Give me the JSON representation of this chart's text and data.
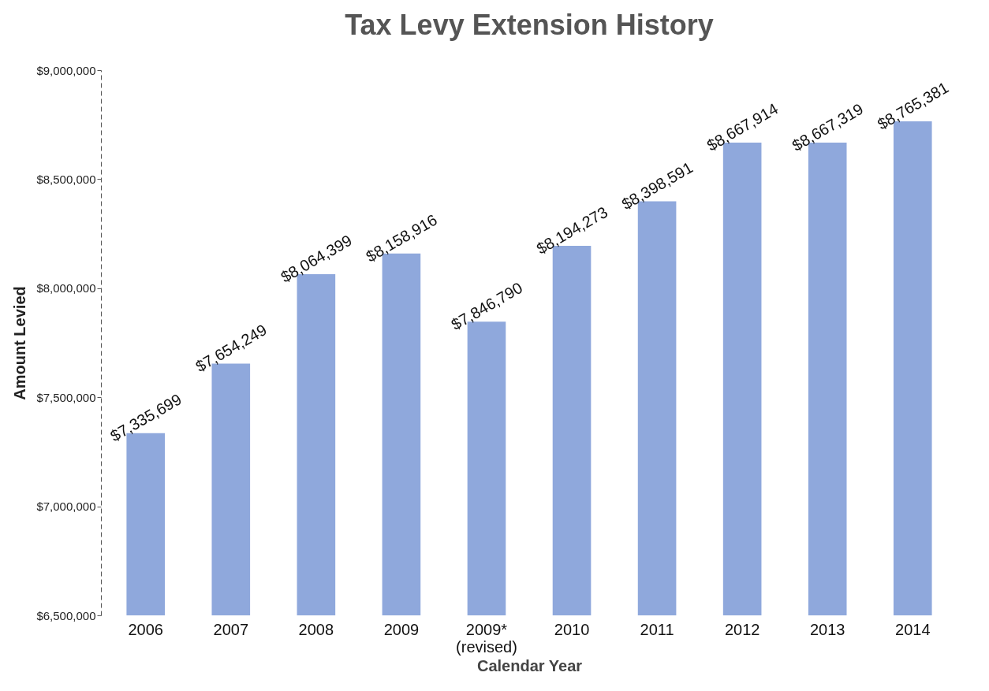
{
  "chart_data": {
    "type": "bar",
    "title": "Tax Levy Extension History",
    "xlabel": "Calendar Year",
    "ylabel": "Amount Levied",
    "categories": [
      "2006",
      "2007",
      "2008",
      "2009",
      "2009*\n(revised)",
      "2010",
      "2011",
      "2012",
      "2013",
      "2014"
    ],
    "values": [
      7335699,
      7654249,
      8064399,
      8158916,
      7846790,
      8194273,
      8398591,
      8667914,
      8667319,
      8765381
    ],
    "color": "#8fa8dc",
    "ylim": [
      6500000,
      9000000
    ],
    "yticks": [
      {
        "value": 6500000,
        "label": "$6,500,000"
      },
      {
        "value": 7000000,
        "label": "$7,000,000"
      },
      {
        "value": 7500000,
        "label": "$7,500,000"
      },
      {
        "value": 8000000,
        "label": "$8,000,000"
      },
      {
        "value": 8500000,
        "label": "$8,500,000"
      },
      {
        "value": 9000000,
        "label": "$9,000,000"
      }
    ],
    "value_labels": [
      "$7,335,699",
      "$7,654,249",
      "$8,064,399",
      "$8,158,916",
      "$7,846,790",
      "$8,194,273",
      "$8,398,591",
      "$8,667,914",
      "$8,667,319",
      "$8,765,381"
    ],
    "grid": false
  }
}
